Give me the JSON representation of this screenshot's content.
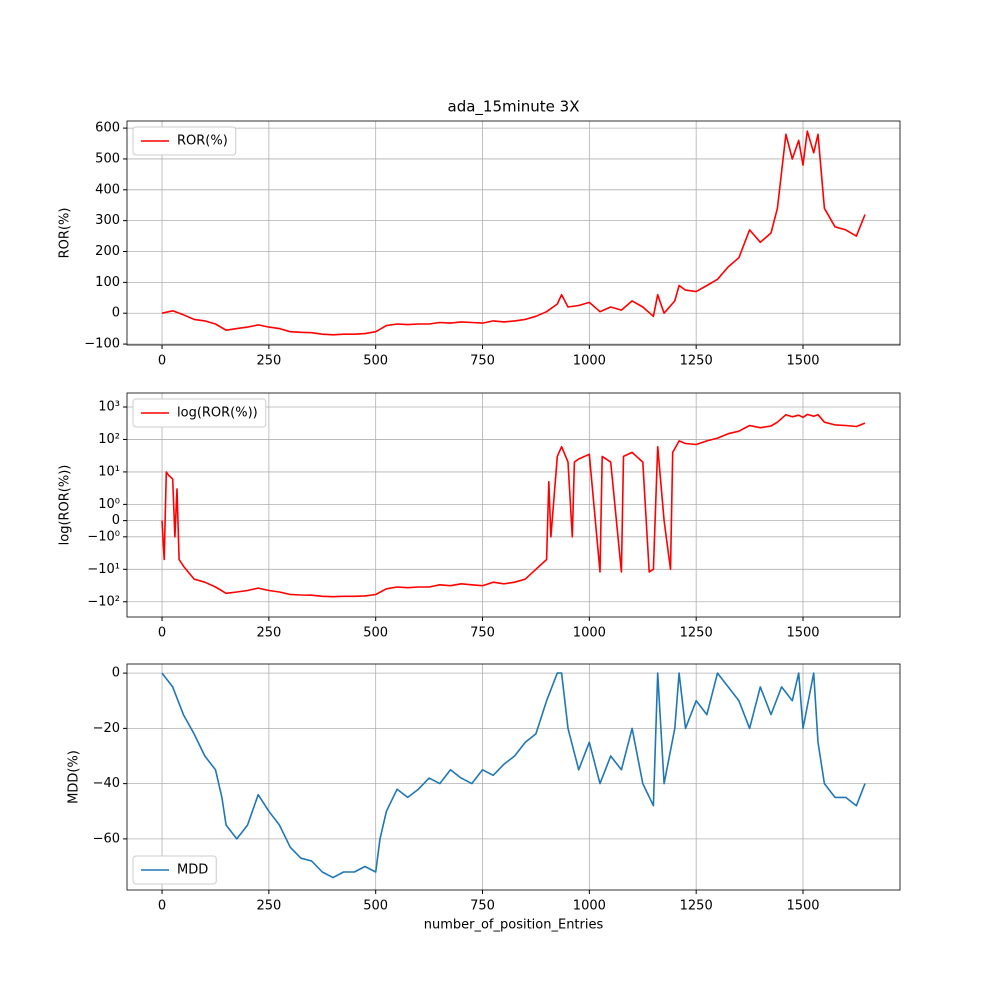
{
  "chart_data": [
    {
      "type": "line",
      "title": "ada_15minute 3X",
      "ylabel": "ROR(%)",
      "legend": "upper left",
      "grid": true,
      "x": [
        0,
        25,
        50,
        75,
        100,
        125,
        150,
        175,
        200,
        225,
        250,
        275,
        300,
        325,
        350,
        375,
        400,
        425,
        450,
        475,
        500,
        525,
        550,
        575,
        600,
        625,
        650,
        675,
        700,
        725,
        750,
        775,
        800,
        825,
        850,
        875,
        900,
        925,
        935,
        950,
        975,
        1000,
        1025,
        1050,
        1075,
        1100,
        1125,
        1150,
        1160,
        1175,
        1200,
        1210,
        1225,
        1250,
        1275,
        1300,
        1325,
        1350,
        1375,
        1400,
        1425,
        1440,
        1460,
        1475,
        1490,
        1500,
        1510,
        1525,
        1535,
        1550,
        1575,
        1600,
        1625,
        1645
      ],
      "series": [
        {
          "name": "ROR(%)",
          "color": "#ff0000",
          "values": [
            0,
            8,
            -5,
            -20,
            -25,
            -35,
            -55,
            -50,
            -45,
            -38,
            -45,
            -50,
            -60,
            -62,
            -63,
            -68,
            -70,
            -68,
            -68,
            -66,
            -60,
            -40,
            -35,
            -37,
            -35,
            -35,
            -30,
            -32,
            -28,
            -30,
            -32,
            -25,
            -28,
            -25,
            -20,
            -10,
            5,
            30,
            60,
            20,
            25,
            35,
            5,
            20,
            10,
            40,
            20,
            -10,
            60,
            0,
            40,
            90,
            75,
            70,
            90,
            110,
            150,
            180,
            270,
            230,
            260,
            340,
            580,
            500,
            560,
            480,
            590,
            520,
            580,
            340,
            280,
            270,
            250,
            320
          ]
        }
      ],
      "xlim": [
        -82,
        1727
      ],
      "ylim": [
        -103,
        623
      ],
      "xticks": [
        0,
        250,
        500,
        750,
        1000,
        1250,
        1500
      ],
      "yticks": [
        {
          "value": -100,
          "label": "−100"
        },
        0,
        100,
        200,
        300,
        400,
        500,
        600
      ]
    },
    {
      "type": "line",
      "ylabel": "log(ROR(%))",
      "legend": "upper left",
      "grid": true,
      "yscale": "symlog",
      "linthresh": 1,
      "x": [
        0,
        5,
        10,
        15,
        25,
        30,
        35,
        40,
        50,
        75,
        100,
        125,
        150,
        175,
        200,
        225,
        250,
        275,
        300,
        325,
        350,
        375,
        400,
        425,
        450,
        475,
        500,
        525,
        550,
        575,
        600,
        625,
        650,
        675,
        700,
        725,
        750,
        775,
        800,
        825,
        850,
        875,
        900,
        905,
        910,
        925,
        935,
        950,
        960,
        965,
        975,
        1000,
        1025,
        1030,
        1050,
        1075,
        1080,
        1100,
        1125,
        1140,
        1150,
        1160,
        1175,
        1190,
        1195,
        1210,
        1225,
        1250,
        1275,
        1300,
        1325,
        1350,
        1375,
        1400,
        1425,
        1440,
        1460,
        1475,
        1490,
        1500,
        1510,
        1525,
        1535,
        1550,
        1575,
        1600,
        1625,
        1645
      ],
      "series": [
        {
          "name": "log(ROR(%))",
          "color": "#ff0000",
          "values": [
            0,
            -5,
            10,
            8,
            6,
            -1,
            3,
            -5,
            -8,
            -20,
            -25,
            -35,
            -55,
            -50,
            -45,
            -38,
            -45,
            -50,
            -60,
            -62,
            -63,
            -68,
            -70,
            -68,
            -68,
            -66,
            -60,
            -40,
            -35,
            -37,
            -35,
            -35,
            -30,
            -32,
            -28,
            -30,
            -32,
            -25,
            -28,
            -25,
            -20,
            -10,
            -5,
            5,
            -1,
            30,
            60,
            20,
            -1,
            20,
            25,
            35,
            -12,
            30,
            20,
            -12,
            30,
            40,
            20,
            -12,
            -10,
            60,
            0,
            -10,
            40,
            90,
            75,
            70,
            90,
            110,
            150,
            180,
            270,
            230,
            260,
            340,
            580,
            500,
            560,
            480,
            590,
            520,
            580,
            340,
            280,
            270,
            250,
            320
          ]
        }
      ],
      "xlim": [
        -82,
        1727
      ],
      "ylim": [
        -295,
        2700
      ],
      "xticks": [
        0,
        250,
        500,
        750,
        1000,
        1250,
        1500
      ],
      "yticks": [
        {
          "value": -100,
          "label": "−10²"
        },
        {
          "value": -10,
          "label": "−10¹"
        },
        {
          "value": -1,
          "label": "−10⁰"
        },
        0,
        {
          "value": 1,
          "label": "10⁰"
        },
        {
          "value": 10,
          "label": "10¹"
        },
        {
          "value": 100,
          "label": "10²"
        },
        {
          "value": 1000,
          "label": "10³"
        }
      ]
    },
    {
      "type": "line",
      "ylabel": "MDD(%)",
      "xlabel": "number_of_position_Entries",
      "legend": "lower left",
      "grid": true,
      "x": [
        0,
        25,
        50,
        75,
        100,
        125,
        140,
        150,
        175,
        200,
        225,
        250,
        275,
        300,
        325,
        350,
        375,
        400,
        425,
        450,
        475,
        500,
        510,
        525,
        550,
        575,
        600,
        625,
        650,
        675,
        700,
        725,
        750,
        775,
        800,
        825,
        850,
        875,
        900,
        925,
        935,
        950,
        975,
        1000,
        1025,
        1050,
        1075,
        1100,
        1125,
        1150,
        1160,
        1175,
        1200,
        1210,
        1225,
        1250,
        1275,
        1300,
        1325,
        1350,
        1375,
        1400,
        1425,
        1450,
        1475,
        1490,
        1500,
        1525,
        1535,
        1550,
        1575,
        1600,
        1625,
        1645
      ],
      "series": [
        {
          "name": "MDD",
          "color": "#1f77b4",
          "values": [
            0,
            -5,
            -15,
            -22,
            -30,
            -35,
            -45,
            -55,
            -60,
            -55,
            -44,
            -50,
            -55,
            -63,
            -67,
            -68,
            -72,
            -74,
            -72,
            -72,
            -70,
            -72,
            -60,
            -50,
            -42,
            -45,
            -42,
            -38,
            -40,
            -35,
            -38,
            -40,
            -35,
            -37,
            -33,
            -30,
            -25,
            -22,
            -10,
            0,
            0,
            -20,
            -35,
            -25,
            -40,
            -30,
            -35,
            -20,
            -40,
            -48,
            0,
            -40,
            -20,
            0,
            -20,
            -10,
            -15,
            0,
            -5,
            -10,
            -20,
            -5,
            -15,
            -5,
            -10,
            0,
            -20,
            0,
            -25,
            -40,
            -45,
            -45,
            -48,
            -40
          ]
        }
      ],
      "xlim": [
        -82,
        1727
      ],
      "ylim": [
        -78.5,
        3.3
      ],
      "xticks": [
        0,
        250,
        500,
        750,
        1000,
        1250,
        1500
      ],
      "yticks": [
        {
          "value": -60,
          "label": "−60"
        },
        {
          "value": -40,
          "label": "−40"
        },
        {
          "value": -20,
          "label": "−20"
        },
        0
      ]
    }
  ]
}
